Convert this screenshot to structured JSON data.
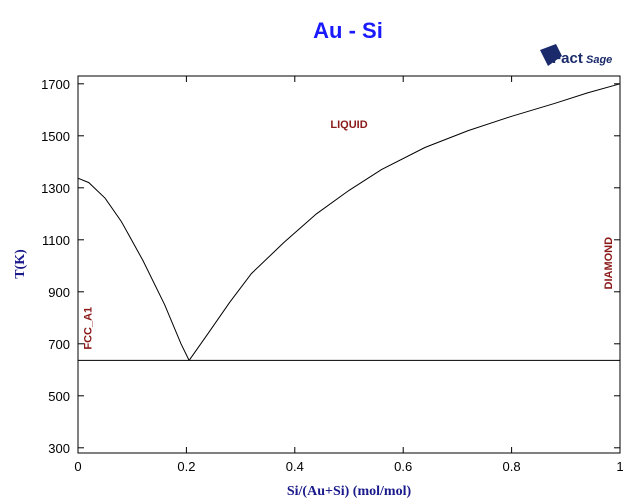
{
  "chart_data": {
    "type": "line",
    "title": "Au - Si",
    "xlabel": "Si/(Au+Si) (mol/mol)",
    "ylabel": "T(K)",
    "xlim": [
      0,
      1
    ],
    "ylim": [
      280,
      1730
    ],
    "xticks": [
      0,
      0.2,
      0.4,
      0.6,
      0.8,
      1
    ],
    "xtick_labels": [
      "0",
      "0.2",
      "0.4",
      "0.6",
      "0.8",
      "1"
    ],
    "yticks": [
      300,
      500,
      700,
      900,
      1100,
      1300,
      1500,
      1700
    ],
    "ytick_labels": [
      "300",
      "500",
      "700",
      "900",
      "1100",
      "1300",
      "1500",
      "1700"
    ],
    "grid": false,
    "series": [
      {
        "values": [
          [
            0,
            1337
          ],
          [
            0.02,
            1320
          ],
          [
            0.05,
            1260
          ],
          [
            0.08,
            1170
          ],
          [
            0.12,
            1020
          ],
          [
            0.16,
            850
          ],
          [
            0.19,
            700
          ],
          [
            0.205,
            636
          ]
        ]
      },
      {
        "values": [
          [
            0.205,
            636
          ],
          [
            0.24,
            740
          ],
          [
            0.28,
            860
          ],
          [
            0.32,
            970
          ],
          [
            0.38,
            1090
          ],
          [
            0.44,
            1200
          ],
          [
            0.5,
            1290
          ],
          [
            0.56,
            1370
          ],
          [
            0.64,
            1455
          ],
          [
            0.72,
            1520
          ],
          [
            0.8,
            1575
          ],
          [
            0.88,
            1625
          ],
          [
            0.94,
            1665
          ],
          [
            1.0,
            1700
          ]
        ]
      },
      {
        "values": [
          [
            0,
            636
          ],
          [
            1,
            636
          ]
        ]
      }
    ],
    "annotations": [
      {
        "text": "LIQUID",
        "x": 0.5,
        "y": 1530
      },
      {
        "text": "FCC_A1",
        "x": 0.025,
        "y": 760,
        "orientation": "vertical"
      },
      {
        "text": "DIAMOND",
        "x": 0.985,
        "y": 1010,
        "orientation": "vertical"
      }
    ]
  },
  "logo": {
    "text_a": "Fact",
    "text_b": "Sage"
  },
  "colors": {
    "title": "#1a1aff",
    "axis_label": "#1a1a8c",
    "region_label": "#8b1a1a",
    "line": "#000000"
  }
}
